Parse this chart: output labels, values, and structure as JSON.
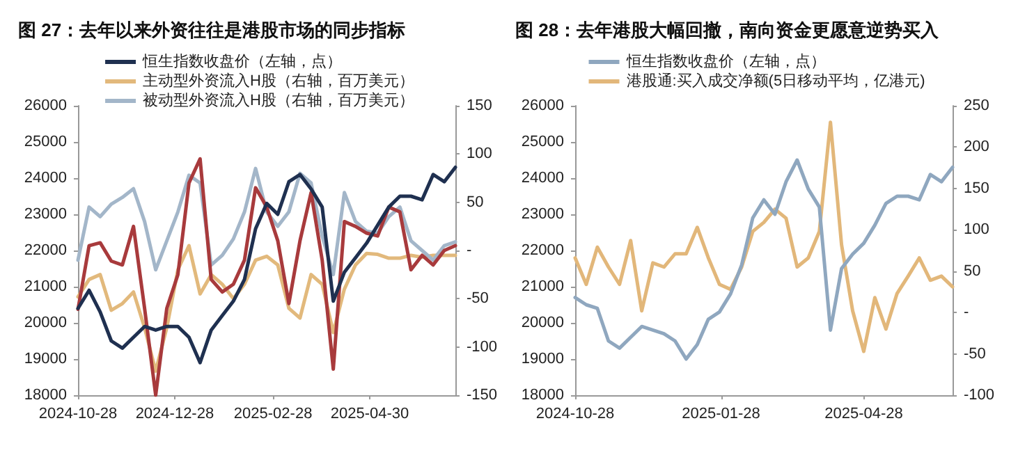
{
  "chart_data": [
    {
      "type": "line",
      "title": "图 27：去年以来外资往往是港股市场的同步指标",
      "legend": "top",
      "marker": "none",
      "line_style": "solid",
      "x": [
        "2024-10-28",
        "2024-11-04",
        "2024-11-11",
        "2024-11-18",
        "2024-11-25",
        "2024-12-02",
        "2024-12-09",
        "2024-12-16",
        "2024-12-23",
        "2024-12-30",
        "2025-01-06",
        "2025-01-13",
        "2025-01-20",
        "2025-01-27",
        "2025-02-03",
        "2025-02-10",
        "2025-02-17",
        "2025-02-24",
        "2025-03-03",
        "2025-03-10",
        "2025-03-17",
        "2025-03-24",
        "2025-03-31",
        "2025-04-07",
        "2025-04-14",
        "2025-04-21",
        "2025-04-28",
        "2025-05-05",
        "2025-05-12",
        "2025-05-19",
        "2025-05-26",
        "2025-06-02",
        "2025-06-09",
        "2025-06-16",
        "2025-06-23"
      ],
      "xlim": [
        "2024-10-28",
        "2025-06-23"
      ],
      "xticks": [
        "2024-10-28",
        "2024-12-28",
        "2025-02-28",
        "2025-04-30"
      ],
      "ylim": [
        18000,
        26000
      ],
      "yticks": [
        18000,
        19000,
        20000,
        21000,
        22000,
        23000,
        24000,
        25000,
        26000
      ],
      "y2lim": [
        -150,
        150
      ],
      "y2ticks": [
        -150,
        -100,
        -50,
        {
          "value": 0,
          "label": "-"
        },
        50,
        100,
        150
      ],
      "series": [
        {
          "name": "恒生指数收盘价（左轴，点）",
          "color": "#1f3050",
          "values": [
            20400,
            20900,
            20300,
            19500,
            19300,
            19600,
            19900,
            19800,
            19900,
            19900,
            19600,
            18900,
            19800,
            20200,
            20600,
            21200,
            22600,
            23300,
            23000,
            23900,
            24100,
            23700,
            23200,
            20600,
            21400,
            21800,
            22200,
            22700,
            23200,
            23500,
            23500,
            23400,
            24100,
            23900,
            24300
          ]
        },
        {
          "name": "主动型外资流入H股（右轴，百万美元）",
          "color": "#e2b97c",
          "axis": "y2",
          "values": [
            -48,
            -30,
            -25,
            -62,
            -55,
            -43,
            -80,
            -125,
            -80,
            -20,
            5,
            -45,
            -25,
            -35,
            -50,
            -35,
            -10,
            -6,
            -15,
            -60,
            -70,
            -25,
            -35,
            -85,
            -40,
            -15,
            -3,
            -4,
            -8,
            -8,
            -5,
            -7,
            -5,
            -5,
            -5
          ]
        },
        {
          "name": "被动型外资流入H股（右轴，百万美元）",
          "color": "#a3b6c9",
          "axis": "y2",
          "values": [
            -10,
            45,
            35,
            48,
            55,
            64,
            30,
            -20,
            10,
            40,
            78,
            70,
            -15,
            -5,
            12,
            40,
            85,
            40,
            25,
            40,
            80,
            70,
            15,
            -25,
            60,
            30,
            20,
            18,
            35,
            45,
            10,
            0,
            -10,
            5,
            9
          ]
        },
        {
          "color": "#a83a3c",
          "axis": "y2",
          "values": [
            -61,
            5,
            8,
            -11,
            -15,
            25,
            -60,
            -150,
            -60,
            -25,
            70,
            95,
            -30,
            -43,
            -35,
            -10,
            65,
            45,
            10,
            -55,
            10,
            60,
            -10,
            -123,
            30,
            25,
            18,
            15,
            45,
            40,
            -20,
            -5,
            -15,
            0,
            5
          ]
        }
      ]
    },
    {
      "type": "line",
      "title": "图 28：去年港股大幅回撤，南向资金更愿意逆势买入",
      "legend": "top",
      "marker": "none",
      "line_style": "solid",
      "x": [
        "2024-10-28",
        "2024-11-04",
        "2024-11-11",
        "2024-11-18",
        "2024-11-25",
        "2024-12-02",
        "2024-12-09",
        "2024-12-16",
        "2024-12-23",
        "2024-12-30",
        "2025-01-06",
        "2025-01-13",
        "2025-01-20",
        "2025-01-27",
        "2025-02-03",
        "2025-02-10",
        "2025-02-17",
        "2025-02-24",
        "2025-03-03",
        "2025-03-10",
        "2025-03-17",
        "2025-03-24",
        "2025-03-31",
        "2025-04-07",
        "2025-04-14",
        "2025-04-21",
        "2025-04-28",
        "2025-05-05",
        "2025-05-12",
        "2025-05-19",
        "2025-05-26",
        "2025-06-02",
        "2025-06-09",
        "2025-06-16",
        "2025-06-23"
      ],
      "xlim": [
        "2024-10-28",
        "2025-06-23"
      ],
      "xticks": [
        "2024-10-28",
        "2025-01-28",
        "2025-04-28"
      ],
      "ylim": [
        18000,
        26000
      ],
      "yticks": [
        18000,
        19000,
        20000,
        21000,
        22000,
        23000,
        24000,
        25000,
        26000
      ],
      "y2lim": [
        -100,
        250
      ],
      "y2ticks": [
        -100,
        -50,
        {
          "value": 0,
          "label": "-"
        },
        50,
        100,
        150,
        200,
        250
      ],
      "series": [
        {
          "name": "恒生指数收盘价（左轴，点）",
          "color": "#8fa7bf",
          "values": [
            20700,
            20500,
            20400,
            19500,
            19300,
            19600,
            19900,
            19800,
            19700,
            19500,
            19000,
            19400,
            20100,
            20300,
            20800,
            21600,
            22900,
            23400,
            23000,
            23900,
            24500,
            23700,
            23200,
            19800,
            21500,
            21900,
            22200,
            22700,
            23300,
            23500,
            23500,
            23400,
            24100,
            23900,
            24300
          ]
        },
        {
          "name": "港股通:买入成交净额(5日移动平均，亿港元)",
          "color": "#e2b77a",
          "axis": "y2",
          "values": [
            66,
            34,
            79,
            55,
            34,
            87,
            2,
            60,
            55,
            71,
            71,
            103,
            66,
            34,
            28,
            55,
            98,
            109,
            125,
            114,
            55,
            66,
            98,
            230,
            82,
            2,
            -47,
            18,
            -20,
            23,
            44,
            66,
            39,
            44,
            31
          ]
        }
      ]
    }
  ]
}
